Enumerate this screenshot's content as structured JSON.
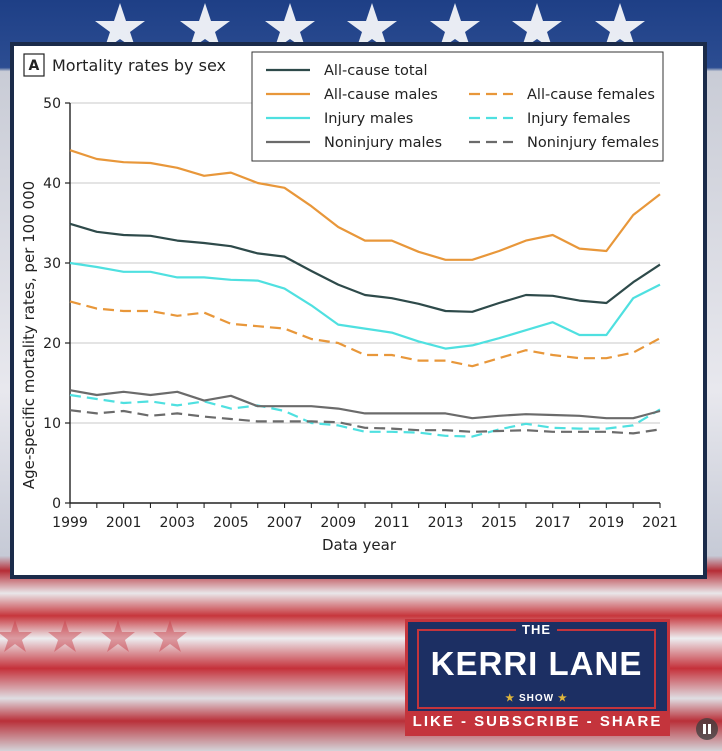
{
  "chart_data": {
    "type": "line",
    "panel_label": "A",
    "title": "Mortality rates by sex",
    "xlabel": "Data year",
    "ylabel": "Age-specific mortality rates, per 100 000",
    "xlim": [
      1999,
      2021
    ],
    "ylim": [
      0,
      50
    ],
    "yticks": [
      0,
      10,
      20,
      30,
      40,
      50
    ],
    "xticks": [
      1999,
      2001,
      2003,
      2005,
      2007,
      2009,
      2011,
      2013,
      2015,
      2017,
      2019,
      2021
    ],
    "grid": "horizontal",
    "legend_position": "top-right",
    "x": [
      1999,
      2000,
      2001,
      2002,
      2003,
      2004,
      2005,
      2006,
      2007,
      2008,
      2009,
      2010,
      2011,
      2012,
      2013,
      2014,
      2015,
      2016,
      2017,
      2018,
      2019,
      2020,
      2021
    ],
    "series": [
      {
        "name": "All-cause total",
        "color": "#2e4a4a",
        "dash": "solid",
        "values": [
          34.9,
          33.9,
          33.5,
          33.4,
          32.8,
          32.5,
          32.1,
          31.2,
          30.8,
          29.0,
          27.3,
          26.0,
          25.6,
          24.9,
          24.0,
          23.9,
          25.0,
          26.0,
          25.9,
          25.3,
          25.0,
          27.6,
          29.8
        ]
      },
      {
        "name": "All-cause males",
        "color": "#e8973a",
        "dash": "solid",
        "values": [
          44.1,
          43.0,
          42.6,
          42.5,
          41.9,
          40.9,
          41.3,
          40.0,
          39.4,
          37.1,
          34.5,
          32.8,
          32.8,
          31.4,
          30.4,
          30.4,
          31.5,
          32.8,
          33.5,
          31.8,
          31.5,
          36.0,
          38.6
        ]
      },
      {
        "name": "All-cause females",
        "color": "#e8973a",
        "dash": "dashed",
        "values": [
          25.2,
          24.3,
          24.0,
          24.0,
          23.4,
          23.8,
          22.4,
          22.1,
          21.8,
          20.5,
          20.0,
          18.5,
          18.5,
          17.8,
          17.8,
          17.1,
          18.1,
          19.1,
          18.5,
          18.1,
          18.1,
          18.8,
          20.6
        ]
      },
      {
        "name": "Injury males",
        "color": "#4fe0e0",
        "dash": "solid",
        "values": [
          30.0,
          29.5,
          28.9,
          28.9,
          28.2,
          28.2,
          27.9,
          27.8,
          26.8,
          24.7,
          22.3,
          21.8,
          21.3,
          20.2,
          19.3,
          19.7,
          20.6,
          21.6,
          22.6,
          21.0,
          21.0,
          25.6,
          27.3
        ]
      },
      {
        "name": "Injury females",
        "color": "#4fe0e0",
        "dash": "dashed",
        "values": [
          13.5,
          13.0,
          12.5,
          12.7,
          12.2,
          12.7,
          11.8,
          12.2,
          11.5,
          10.0,
          9.7,
          8.9,
          8.9,
          8.8,
          8.4,
          8.3,
          9.2,
          9.9,
          9.4,
          9.3,
          9.3,
          9.7,
          11.7
        ]
      },
      {
        "name": "Noninjury males",
        "color": "#6b6b6b",
        "dash": "solid",
        "values": [
          14.1,
          13.5,
          13.9,
          13.5,
          13.9,
          12.8,
          13.4,
          12.1,
          12.1,
          12.1,
          11.8,
          11.2,
          11.2,
          11.2,
          11.2,
          10.6,
          10.9,
          11.1,
          11.0,
          10.9,
          10.6,
          10.6,
          11.5
        ]
      },
      {
        "name": "Noninjury females",
        "color": "#6b6b6b",
        "dash": "dashed",
        "values": [
          11.6,
          11.2,
          11.5,
          10.9,
          11.2,
          10.8,
          10.5,
          10.2,
          10.2,
          10.2,
          10.1,
          9.4,
          9.3,
          9.1,
          9.1,
          8.9,
          9.0,
          9.1,
          8.9,
          8.9,
          8.9,
          8.7,
          9.2
        ]
      }
    ]
  },
  "logo": {
    "the": "THE",
    "name": "KERRI LANE",
    "show": "SHOW",
    "tagline": "LIKE - SUBSCRIBE - SHARE"
  },
  "colors": {
    "flag_blue": "#1e3f86",
    "flag_red": "#c4343c",
    "panel_border": "#1b2b4a"
  }
}
